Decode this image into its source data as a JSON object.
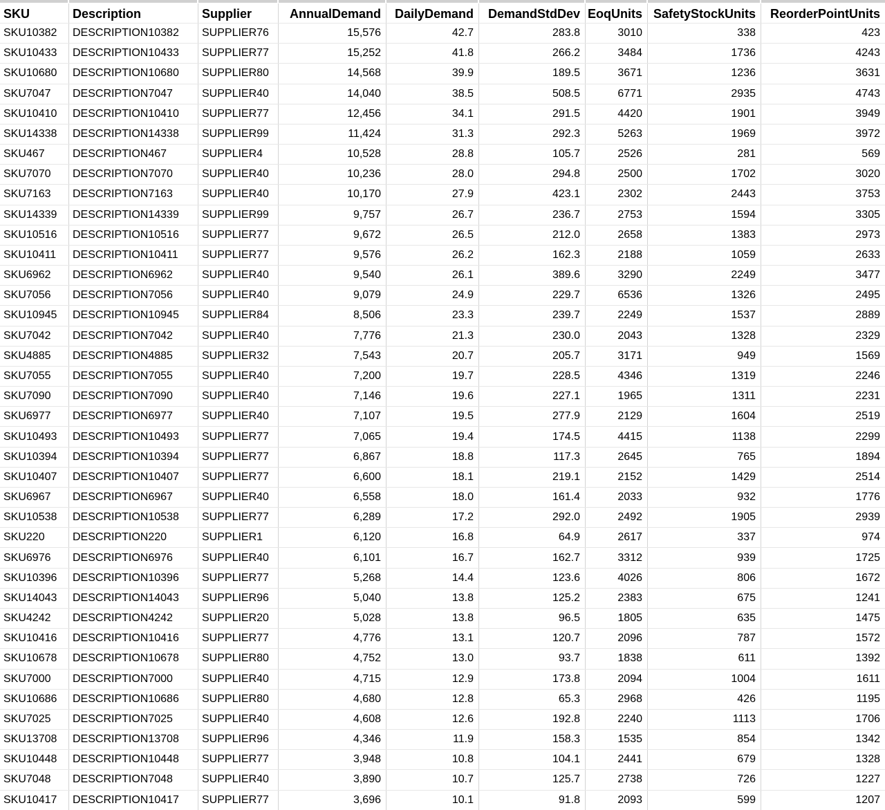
{
  "table": {
    "columns": [
      "SKU",
      "Description",
      "Supplier",
      "AnnualDemand",
      "DailyDemand",
      "DemandStdDev",
      "EoqUnits",
      "SafetyStockUnits",
      "ReorderPointUnits"
    ],
    "rows": [
      [
        "SKU10382",
        "DESCRIPTION10382",
        "SUPPLIER76",
        "15,576",
        "42.7",
        "283.8",
        "3010",
        "338",
        "423"
      ],
      [
        "SKU10433",
        "DESCRIPTION10433",
        "SUPPLIER77",
        "15,252",
        "41.8",
        "266.2",
        "3484",
        "1736",
        "4243"
      ],
      [
        "SKU10680",
        "DESCRIPTION10680",
        "SUPPLIER80",
        "14,568",
        "39.9",
        "189.5",
        "3671",
        "1236",
        "3631"
      ],
      [
        "SKU7047",
        "DESCRIPTION7047",
        "SUPPLIER40",
        "14,040",
        "38.5",
        "508.5",
        "6771",
        "2935",
        "4743"
      ],
      [
        "SKU10410",
        "DESCRIPTION10410",
        "SUPPLIER77",
        "12,456",
        "34.1",
        "291.5",
        "4420",
        "1901",
        "3949"
      ],
      [
        "SKU14338",
        "DESCRIPTION14338",
        "SUPPLIER99",
        "11,424",
        "31.3",
        "292.3",
        "5263",
        "1969",
        "3972"
      ],
      [
        "SKU467",
        "DESCRIPTION467",
        "SUPPLIER4",
        "10,528",
        "28.8",
        "105.7",
        "2526",
        "281",
        "569"
      ],
      [
        "SKU7070",
        "DESCRIPTION7070",
        "SUPPLIER40",
        "10,236",
        "28.0",
        "294.8",
        "2500",
        "1702",
        "3020"
      ],
      [
        "SKU7163",
        "DESCRIPTION7163",
        "SUPPLIER40",
        "10,170",
        "27.9",
        "423.1",
        "2302",
        "2443",
        "3753"
      ],
      [
        "SKU14339",
        "DESCRIPTION14339",
        "SUPPLIER99",
        "9,757",
        "26.7",
        "236.7",
        "2753",
        "1594",
        "3305"
      ],
      [
        "SKU10516",
        "DESCRIPTION10516",
        "SUPPLIER77",
        "9,672",
        "26.5",
        "212.0",
        "2658",
        "1383",
        "2973"
      ],
      [
        "SKU10411",
        "DESCRIPTION10411",
        "SUPPLIER77",
        "9,576",
        "26.2",
        "162.3",
        "2188",
        "1059",
        "2633"
      ],
      [
        "SKU6962",
        "DESCRIPTION6962",
        "SUPPLIER40",
        "9,540",
        "26.1",
        "389.6",
        "3290",
        "2249",
        "3477"
      ],
      [
        "SKU7056",
        "DESCRIPTION7056",
        "SUPPLIER40",
        "9,079",
        "24.9",
        "229.7",
        "6536",
        "1326",
        "2495"
      ],
      [
        "SKU10945",
        "DESCRIPTION10945",
        "SUPPLIER84",
        "8,506",
        "23.3",
        "239.7",
        "2249",
        "1537",
        "2889"
      ],
      [
        "SKU7042",
        "DESCRIPTION7042",
        "SUPPLIER40",
        "7,776",
        "21.3",
        "230.0",
        "2043",
        "1328",
        "2329"
      ],
      [
        "SKU4885",
        "DESCRIPTION4885",
        "SUPPLIER32",
        "7,543",
        "20.7",
        "205.7",
        "3171",
        "949",
        "1569"
      ],
      [
        "SKU7055",
        "DESCRIPTION7055",
        "SUPPLIER40",
        "7,200",
        "19.7",
        "228.5",
        "4346",
        "1319",
        "2246"
      ],
      [
        "SKU7090",
        "DESCRIPTION7090",
        "SUPPLIER40",
        "7,146",
        "19.6",
        "227.1",
        "1965",
        "1311",
        "2231"
      ],
      [
        "SKU6977",
        "DESCRIPTION6977",
        "SUPPLIER40",
        "7,107",
        "19.5",
        "277.9",
        "2129",
        "1604",
        "2519"
      ],
      [
        "SKU10493",
        "DESCRIPTION10493",
        "SUPPLIER77",
        "7,065",
        "19.4",
        "174.5",
        "4415",
        "1138",
        "2299"
      ],
      [
        "SKU10394",
        "DESCRIPTION10394",
        "SUPPLIER77",
        "6,867",
        "18.8",
        "117.3",
        "2645",
        "765",
        "1894"
      ],
      [
        "SKU10407",
        "DESCRIPTION10407",
        "SUPPLIER77",
        "6,600",
        "18.1",
        "219.1",
        "2152",
        "1429",
        "2514"
      ],
      [
        "SKU6967",
        "DESCRIPTION6967",
        "SUPPLIER40",
        "6,558",
        "18.0",
        "161.4",
        "2033",
        "932",
        "1776"
      ],
      [
        "SKU10538",
        "DESCRIPTION10538",
        "SUPPLIER77",
        "6,289",
        "17.2",
        "292.0",
        "2492",
        "1905",
        "2939"
      ],
      [
        "SKU220",
        "DESCRIPTION220",
        "SUPPLIER1",
        "6,120",
        "16.8",
        "64.9",
        "2617",
        "337",
        "974"
      ],
      [
        "SKU6976",
        "DESCRIPTION6976",
        "SUPPLIER40",
        "6,101",
        "16.7",
        "162.7",
        "3312",
        "939",
        "1725"
      ],
      [
        "SKU10396",
        "DESCRIPTION10396",
        "SUPPLIER77",
        "5,268",
        "14.4",
        "123.6",
        "4026",
        "806",
        "1672"
      ],
      [
        "SKU14043",
        "DESCRIPTION14043",
        "SUPPLIER96",
        "5,040",
        "13.8",
        "125.2",
        "2383",
        "675",
        "1241"
      ],
      [
        "SKU4242",
        "DESCRIPTION4242",
        "SUPPLIER20",
        "5,028",
        "13.8",
        "96.5",
        "1805",
        "635",
        "1475"
      ],
      [
        "SKU10416",
        "DESCRIPTION10416",
        "SUPPLIER77",
        "4,776",
        "13.1",
        "120.7",
        "2096",
        "787",
        "1572"
      ],
      [
        "SKU10678",
        "DESCRIPTION10678",
        "SUPPLIER80",
        "4,752",
        "13.0",
        "93.7",
        "1838",
        "611",
        "1392"
      ],
      [
        "SKU7000",
        "DESCRIPTION7000",
        "SUPPLIER40",
        "4,715",
        "12.9",
        "173.8",
        "2094",
        "1004",
        "1611"
      ],
      [
        "SKU10686",
        "DESCRIPTION10686",
        "SUPPLIER80",
        "4,680",
        "12.8",
        "65.3",
        "2968",
        "426",
        "1195"
      ],
      [
        "SKU7025",
        "DESCRIPTION7025",
        "SUPPLIER40",
        "4,608",
        "12.6",
        "192.8",
        "2240",
        "1113",
        "1706"
      ],
      [
        "SKU13708",
        "DESCRIPTION13708",
        "SUPPLIER96",
        "4,346",
        "11.9",
        "158.3",
        "1535",
        "854",
        "1342"
      ],
      [
        "SKU10448",
        "DESCRIPTION10448",
        "SUPPLIER77",
        "3,948",
        "10.8",
        "104.1",
        "2441",
        "679",
        "1328"
      ],
      [
        "SKU7048",
        "DESCRIPTION7048",
        "SUPPLIER40",
        "3,890",
        "10.7",
        "125.7",
        "2738",
        "726",
        "1227"
      ],
      [
        "SKU10417",
        "DESCRIPTION10417",
        "SUPPLIER77",
        "3,696",
        "10.1",
        "91.8",
        "2093",
        "599",
        "1207"
      ]
    ]
  },
  "colors": {
    "background": "#ffffff",
    "text": "#000000",
    "gridline_vertical": "#d4d4d4",
    "gridline_horizontal": "#e7e7e7",
    "top_band": "#d0d0d0"
  }
}
